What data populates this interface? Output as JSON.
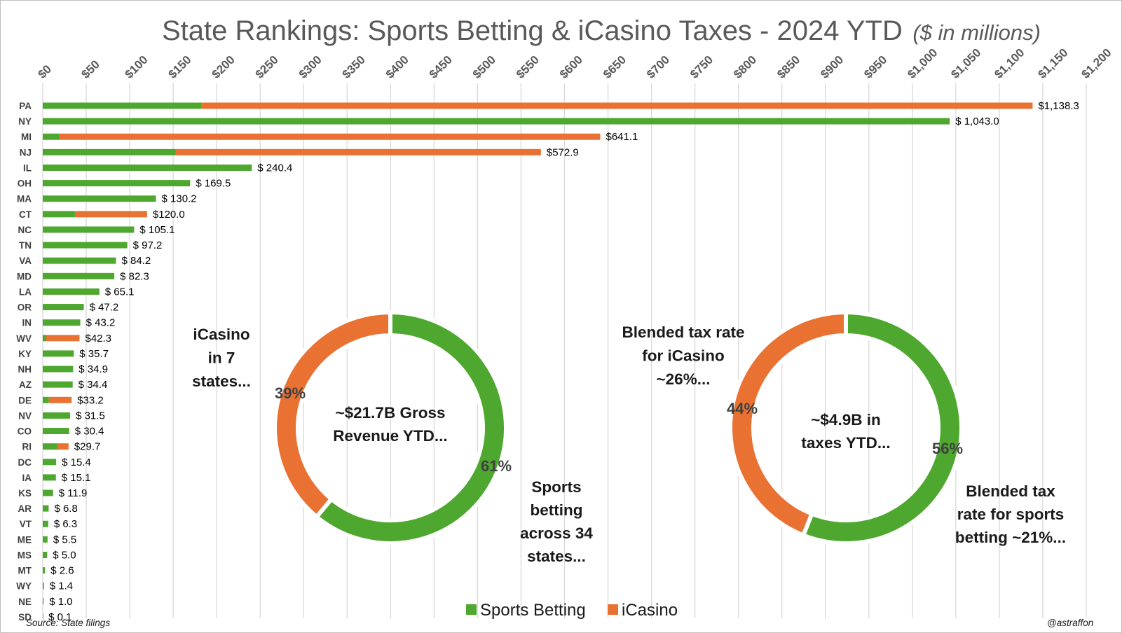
{
  "chart_data": [
    {
      "type": "bar",
      "orientation": "horizontal-stacked",
      "title": "State Rankings: Sports Betting & iCasino Taxes - 2024 YTD",
      "subtitle": "($ in millions)",
      "xlim": [
        0,
        1200
      ],
      "x_tick_step": 50,
      "x_ticks": [
        "$0",
        "$50",
        "$100",
        "$150",
        "$200",
        "$250",
        "$300",
        "$350",
        "$400",
        "$450",
        "$500",
        "$550",
        "$600",
        "$650",
        "$700",
        "$750",
        "$800",
        "$850",
        "$900",
        "$950",
        "$1,000",
        "$1,050",
        "$1,100",
        "$1,150",
        "$1,200"
      ],
      "grid": true,
      "categories": [
        "PA",
        "NY",
        "MI",
        "NJ",
        "IL",
        "OH",
        "MA",
        "CT",
        "NC",
        "TN",
        "VA",
        "MD",
        "LA",
        "OR",
        "IN",
        "WV",
        "KY",
        "NH",
        "AZ",
        "DE",
        "NV",
        "CO",
        "RI",
        "DC",
        "IA",
        "KS",
        "AR",
        "VT",
        "ME",
        "MS",
        "MT",
        "WY",
        "NE",
        "SD"
      ],
      "series": [
        {
          "name": "Sports Betting",
          "color": "#4ea72e",
          "values": [
            182.6,
            1043.0,
            19.0,
            152.7,
            240.4,
            169.5,
            130.2,
            37.0,
            105.1,
            97.2,
            84.2,
            82.3,
            65.1,
            47.2,
            43.2,
            4.0,
            35.7,
            34.9,
            34.4,
            7.0,
            31.5,
            30.4,
            17.6,
            15.4,
            15.1,
            11.9,
            6.8,
            6.3,
            5.5,
            5.0,
            2.6,
            1.4,
            1.0,
            0.1
          ]
        },
        {
          "name": "iCasino",
          "color": "#e97132",
          "values": [
            955.7,
            0,
            622.1,
            420.2,
            0,
            0,
            0,
            83.0,
            0,
            0,
            0,
            0,
            0,
            0,
            0,
            38.3,
            0,
            0,
            0,
            26.2,
            0,
            0,
            12.1,
            0,
            0,
            0,
            0,
            0,
            0,
            0,
            0,
            0,
            0,
            0
          ]
        }
      ],
      "data_labels": [
        "$1,138.3",
        "$ 1,043.0",
        "$641.1",
        "$572.9",
        "$ 240.4",
        "$ 169.5",
        "$ 130.2",
        "$120.0",
        "$ 105.1",
        "$ 97.2",
        "$ 84.2",
        "$ 82.3",
        "$ 65.1",
        "$ 47.2",
        "$ 43.2",
        "$42.3",
        "$ 35.7",
        "$ 34.9",
        "$ 34.4",
        "$33.2",
        "$ 31.5",
        "$ 30.4",
        "$29.7",
        "$ 15.4",
        "$ 15.1",
        "$ 11.9",
        "$ 6.8",
        "$ 6.3",
        "$ 5.5",
        "$ 5.0",
        "$ 2.6",
        "$ 1.4",
        "$ 1.0",
        "$ 0.1"
      ],
      "legend": {
        "position": "bottom",
        "entries": [
          "Sports Betting",
          "iCasino"
        ]
      }
    },
    {
      "type": "pie",
      "variant": "donut",
      "center_label": [
        "~$21.7B Gross",
        "Revenue YTD..."
      ],
      "slices": [
        {
          "name": "Sports Betting",
          "value": 61,
          "label": "61%",
          "color": "#4ea72e"
        },
        {
          "name": "iCasino",
          "value": 39,
          "label": "39%",
          "color": "#e97132"
        }
      ]
    },
    {
      "type": "pie",
      "variant": "donut",
      "center_label": [
        "~$4.9B in",
        "taxes YTD..."
      ],
      "slices": [
        {
          "name": "Sports Betting",
          "value": 56,
          "label": "56%",
          "color": "#4ea72e"
        },
        {
          "name": "iCasino",
          "value": 44,
          "label": "44%",
          "color": "#e97132"
        }
      ]
    }
  ],
  "annotations": {
    "icasino_states": [
      "iCasino",
      "in 7",
      "states..."
    ],
    "sports_states": [
      "Sports",
      "betting",
      "across 34",
      "states..."
    ],
    "blended_icasino": [
      "Blended tax rate",
      "for iCasino",
      "~26%..."
    ],
    "blended_sports": [
      "Blended tax",
      "rate for sports",
      "betting ~21%..."
    ]
  },
  "footer": {
    "source": "Source: State filings",
    "credit": "@astraffon"
  },
  "colors": {
    "sports_betting": "#4ea72e",
    "icasino": "#e97132",
    "grid": "#d9d9d9"
  }
}
